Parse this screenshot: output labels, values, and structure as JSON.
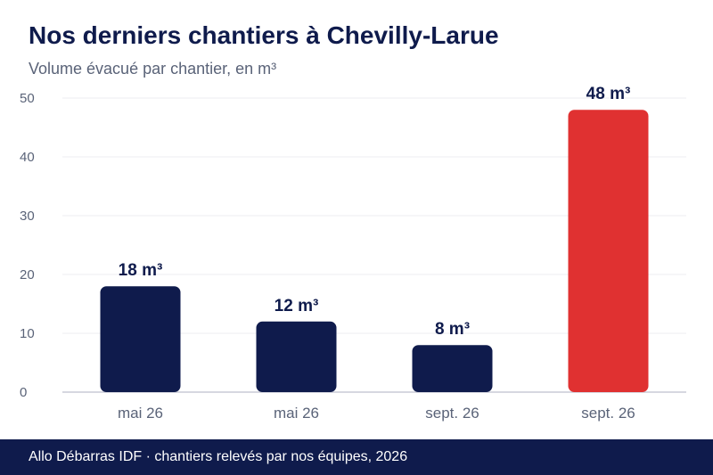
{
  "header": {
    "title": "Nos derniers chantiers à Chevilly-Larue",
    "subtitle": "Volume évacué par chantier, en m³"
  },
  "footer": {
    "text": "Allo Débarras IDF · chantiers relevés par nos équipes, 2026"
  },
  "colors": {
    "bar": "#0f1b4c",
    "highlight": "#e03131",
    "grid": "#ececf0",
    "axis": "#c8cad6",
    "tick_text": "#5a6378",
    "label_text": "#0f1b4c"
  },
  "chart_data": {
    "type": "bar",
    "title": "Nos derniers chantiers à Chevilly-Larue",
    "subtitle": "Volume évacué par chantier, en m³",
    "categories": [
      "mai 26",
      "mai 26",
      "sept. 26",
      "sept. 26"
    ],
    "values": [
      18,
      12,
      8,
      48
    ],
    "data_labels": [
      "18 m³",
      "12 m³",
      "8 m³",
      "48 m³"
    ],
    "highlight_index": 3,
    "ylim": [
      0,
      50
    ],
    "yticks": [
      0,
      10,
      20,
      30,
      40,
      50
    ],
    "grid": true,
    "legend": "none"
  }
}
